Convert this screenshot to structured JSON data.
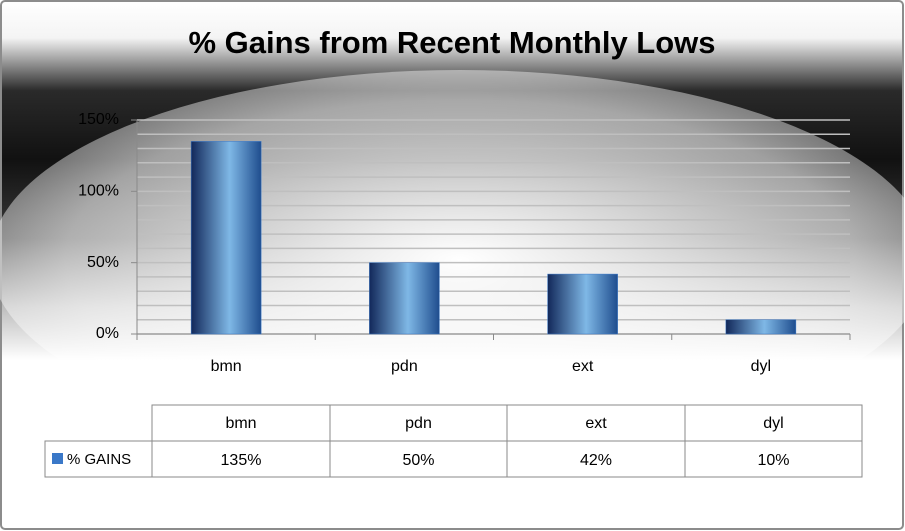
{
  "chart_data": {
    "type": "bar",
    "title": "%  Gains from Recent Monthly Lows",
    "categories": [
      "bmn",
      "pdn",
      "ext",
      "dyl"
    ],
    "series": [
      {
        "name": "% GAINS",
        "color": "#3a78c8",
        "values": [
          135,
          50,
          42,
          10
        ],
        "value_labels": [
          "135%",
          "50%",
          "42%",
          "10%"
        ]
      }
    ],
    "ylim": [
      0,
      150
    ],
    "yticks": [
      {
        "value": 0,
        "label": "0%"
      },
      {
        "value": 50,
        "label": "50%"
      },
      {
        "value": 100,
        "label": "100%"
      },
      {
        "value": 150,
        "label": "150%"
      }
    ],
    "minor_yticks": [
      10,
      20,
      30,
      40,
      60,
      70,
      80,
      90,
      110,
      120,
      130,
      140
    ],
    "grid": true,
    "data_table": true
  }
}
